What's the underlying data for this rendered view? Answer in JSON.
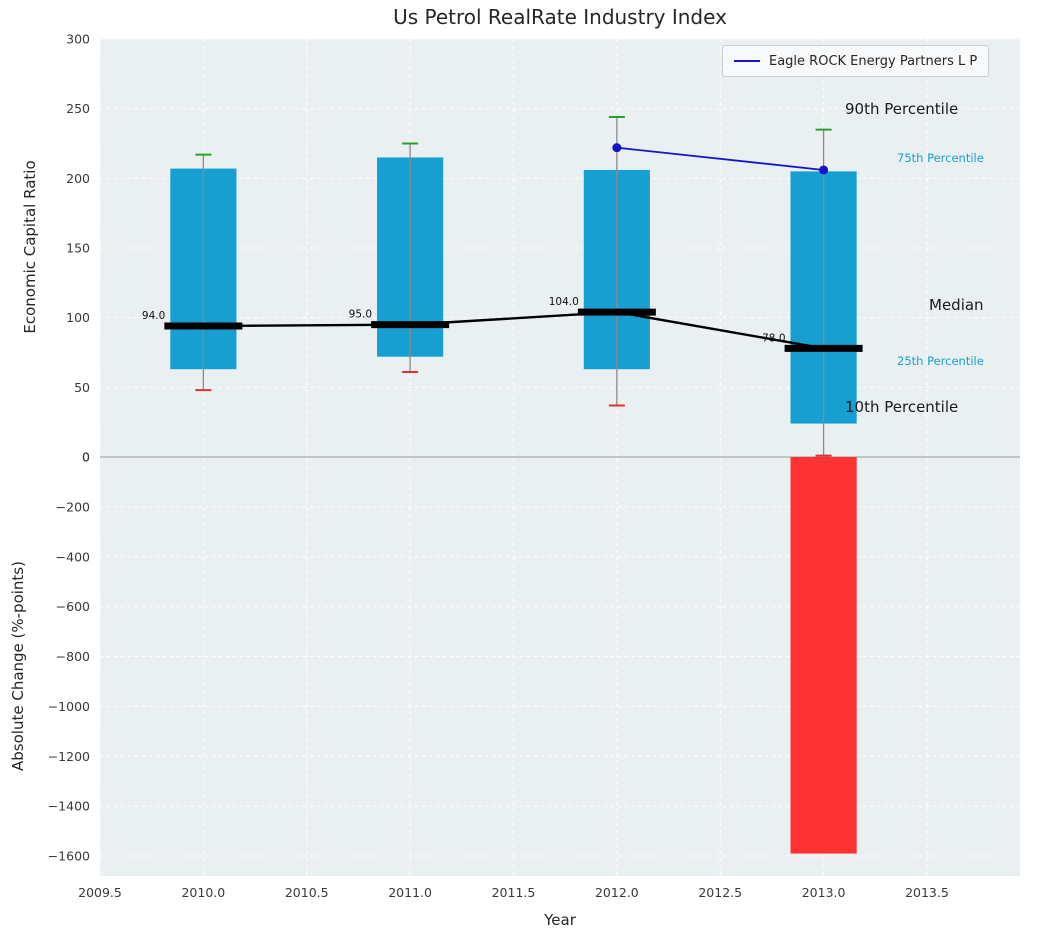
{
  "chart_data": {
    "type": "bar",
    "title": "Us Petrol RealRate Industry Index",
    "xlabel": "Year",
    "xticks": [
      "2009.5",
      "2010.0",
      "2010.5",
      "2011.0",
      "2011.5",
      "2012.0",
      "2012.5",
      "2013.0",
      "2013.5"
    ],
    "x_range": [
      2009.5,
      2013.95
    ],
    "grid": true,
    "legend_position": "upper right",
    "top_panel": {
      "ylabel": "Economic Capital Ratio",
      "ylim": [
        0,
        300
      ],
      "yticks": [
        300,
        250,
        200,
        150,
        100,
        50,
        0
      ],
      "bar_color": "#189fd2",
      "boxes": [
        {
          "year": 2010,
          "p10": 48,
          "p25": 63,
          "median": 94,
          "p75": 207,
          "p90": 217,
          "median_label": "94.0"
        },
        {
          "year": 2011,
          "p10": 61,
          "p25": 72,
          "median": 95,
          "p75": 215,
          "p90": 225,
          "median_label": "95.0"
        },
        {
          "year": 2012,
          "p10": 37,
          "p25": 63,
          "median": 104,
          "p75": 206,
          "p90": 244,
          "median_label": "104.0"
        },
        {
          "year": 2013,
          "p10": 1,
          "p25": 24,
          "median": 78,
          "p75": 205,
          "p90": 235,
          "median_label": "78.0"
        }
      ],
      "company_series": {
        "name": "Eagle ROCK Energy Partners L P",
        "color": "#1515cc",
        "x": [
          2012,
          2013
        ],
        "y": [
          222,
          206
        ]
      },
      "annotations": {
        "p90": "90th Percentile",
        "p75": "75th Percentile",
        "median": "Median",
        "p25": "25th Percentile",
        "p10": "10th Percentile"
      }
    },
    "bottom_panel": {
      "ylabel": "Absolute Change (%-points)",
      "ylim": [
        -1680,
        0
      ],
      "yticks": [
        0,
        -200,
        -400,
        -600,
        -800,
        -1000,
        -1200,
        -1400,
        -1600
      ],
      "bar": {
        "year": 2013,
        "value": -1590,
        "color": "#ff3333"
      }
    },
    "colors": {
      "plot_bg": "#eaf0f2",
      "grid": "#ffffff",
      "whisker": "#8a8a8a",
      "cap_top": "#2ca02c",
      "cap_bottom": "#e03131",
      "median": "#000000",
      "annotation_teal": "#17a2c6",
      "text": "#262626"
    }
  }
}
